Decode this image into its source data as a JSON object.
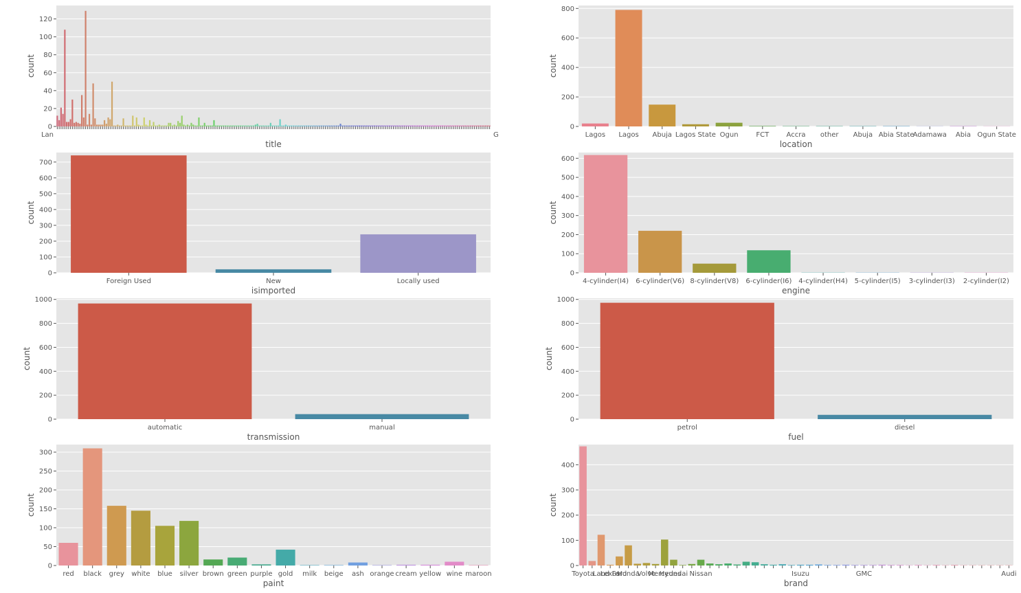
{
  "chart_data": [
    {
      "type": "bar",
      "xlabel": "title",
      "ylabel": "count",
      "ylim": [
        0,
        135
      ],
      "yticks": [
        0,
        20,
        40,
        60,
        80,
        100,
        120
      ],
      "grid": true,
      "tick_label_note": "about 230 overlapping category labels, unreadable",
      "edge_labels": {
        "left": "Lan",
        "right": "G"
      },
      "values": [
        12,
        7,
        21,
        14,
        108,
        5,
        5,
        8,
        30,
        4,
        5,
        4,
        3,
        35,
        10,
        129,
        2,
        14,
        2,
        48,
        9,
        2,
        2,
        2,
        2,
        7,
        3,
        10,
        8,
        50,
        1,
        1,
        2,
        1,
        1,
        9,
        1,
        1,
        1,
        1,
        12,
        1,
        10,
        2,
        1,
        1,
        10,
        2,
        1,
        7,
        1,
        5,
        1,
        1,
        2,
        1,
        1,
        1,
        1,
        4,
        4,
        1,
        2,
        1,
        6,
        4,
        12,
        2,
        1,
        2,
        1,
        4,
        2,
        1,
        1,
        10,
        1,
        1,
        4,
        1,
        1,
        1,
        1,
        7,
        1,
        1,
        1,
        1,
        1,
        1,
        1,
        1,
        1,
        1,
        1,
        1,
        1,
        1,
        1,
        1,
        1,
        1,
        1,
        1,
        1,
        2,
        3,
        1,
        1,
        1,
        1,
        1,
        1,
        4,
        1,
        1,
        1,
        1,
        8,
        1,
        1,
        2,
        1,
        1,
        1,
        1,
        1,
        1,
        1,
        1,
        1,
        1,
        1,
        1,
        1,
        1,
        1,
        1,
        1,
        1,
        1,
        1,
        1,
        1,
        1,
        1,
        1,
        1,
        1,
        1,
        3,
        1,
        1,
        1,
        1,
        1,
        1,
        1,
        1,
        1,
        1,
        1,
        1,
        1,
        1,
        1,
        1,
        1,
        1,
        1,
        1,
        1,
        1,
        1,
        1,
        1,
        1,
        1,
        1,
        1,
        1,
        1,
        1,
        1,
        1,
        1,
        1,
        1,
        1,
        1,
        1,
        1,
        1,
        1,
        1,
        1,
        1,
        1,
        1,
        1,
        1,
        1,
        1,
        1,
        1,
        1,
        1,
        1,
        1,
        1,
        1,
        1,
        1,
        1,
        1,
        1,
        1,
        1,
        1,
        1,
        1,
        1,
        1,
        1,
        1,
        1,
        1,
        1,
        1,
        1
      ]
    },
    {
      "type": "bar",
      "xlabel": "location",
      "ylabel": "count",
      "ylim": [
        0,
        820
      ],
      "yticks": [
        0,
        200,
        400,
        600,
        800
      ],
      "grid": true,
      "categories": [
        "Lagos",
        "Lagos",
        "Abuja",
        "Lagos State",
        "Ogun",
        "FCT",
        "Accra",
        "other",
        "Abuja",
        "Abia State",
        "Adamawa",
        "Abia",
        "Ogun State"
      ],
      "values": [
        20,
        790,
        148,
        15,
        25,
        3,
        2,
        2,
        2,
        2,
        1,
        2,
        1
      ],
      "colors": [
        "#e8808d",
        "#e08c58",
        "#c8983e",
        "#b09a3c",
        "#8ca23e",
        "#5ca44c",
        "#43a568",
        "#43a68a",
        "#43a1a6",
        "#4898c4",
        "#8a91d8",
        "#c47fd8",
        "#e080c6"
      ]
    },
    {
      "type": "bar",
      "xlabel": "isimported",
      "ylabel": "count",
      "ylim": [
        0,
        760
      ],
      "yticks": [
        0,
        100,
        200,
        300,
        400,
        500,
        600,
        700
      ],
      "grid": true,
      "categories": [
        "Foreign Used",
        "New",
        "Locally used"
      ],
      "values": [
        742,
        22,
        243
      ],
      "colors": [
        "#cc5a48",
        "#4889a4",
        "#9c96c8"
      ]
    },
    {
      "type": "bar",
      "xlabel": "engine",
      "ylabel": "count",
      "ylim": [
        0,
        630
      ],
      "yticks": [
        0,
        100,
        200,
        300,
        400,
        500,
        600
      ],
      "grid": true,
      "categories": [
        "4-cylinder(I4)",
        "6-cylinder(V6)",
        "8-cylinder(V8)",
        "6-cylinder(I6)",
        "4-cylinder(H4)",
        "5-cylinder(I5)",
        "3-cylinder(I3)",
        "2-cylinder(I2)"
      ],
      "values": [
        617,
        220,
        48,
        118,
        1,
        1,
        1,
        1
      ],
      "colors": [
        "#e8939c",
        "#c9954a",
        "#a59a3a",
        "#48ad70",
        "#44a7a6",
        "#5aa0d0",
        "#a890d6",
        "#e086c8"
      ]
    },
    {
      "type": "bar",
      "xlabel": "transmission",
      "ylabel": "count",
      "ylim": [
        0,
        1010
      ],
      "yticks": [
        0,
        200,
        400,
        600,
        800,
        1000
      ],
      "grid": true,
      "categories": [
        "automatic",
        "manual"
      ],
      "values": [
        966,
        42
      ],
      "colors": [
        "#cc5a48",
        "#4889a4"
      ]
    },
    {
      "type": "bar",
      "xlabel": "fuel",
      "ylabel": "count",
      "ylim": [
        0,
        1010
      ],
      "yticks": [
        0,
        200,
        400,
        600,
        800,
        1000
      ],
      "grid": true,
      "categories": [
        "petrol",
        "diesel"
      ],
      "values": [
        972,
        36
      ],
      "colors": [
        "#cc5a48",
        "#4889a4"
      ]
    },
    {
      "type": "bar",
      "xlabel": "paint",
      "ylabel": "count",
      "ylim": [
        0,
        320
      ],
      "yticks": [
        0,
        50,
        100,
        150,
        200,
        250,
        300
      ],
      "grid": true,
      "categories": [
        "red",
        "black",
        "grey",
        "white",
        "blue",
        "silver",
        "brown",
        "green",
        "purple",
        "gold",
        "milk",
        "beige",
        "ash",
        "orange",
        "cream",
        "yellow",
        "wine",
        "maroon"
      ],
      "values": [
        60,
        310,
        158,
        145,
        105,
        118,
        16,
        21,
        3,
        42,
        1,
        1,
        8,
        1,
        2,
        2,
        10,
        1
      ],
      "colors": [
        "#e8939c",
        "#e4967c",
        "#cf9a50",
        "#b49c40",
        "#a8a43c",
        "#8ca63e",
        "#54a854",
        "#48ab74",
        "#44aa8e",
        "#44aaa8",
        "#48a6c0",
        "#5aa2d6",
        "#72a0e0",
        "#9c98e0",
        "#bc90de",
        "#d48ad8",
        "#e28cc8",
        "#e68eb0"
      ]
    },
    {
      "type": "bar",
      "xlabel": "brand",
      "ylabel": "count",
      "ylim": [
        0,
        480
      ],
      "yticks": [
        0,
        100,
        200,
        300,
        400
      ],
      "grid": true,
      "tick_label_note": "about 50 overlapping brand labels",
      "categories": [
        "Toyota",
        "",
        "Land",
        "Lexus",
        "Ford",
        "Honda",
        "",
        "Volvo",
        "",
        "Mercedes",
        "Hyundai",
        "",
        "",
        "Nissan",
        "",
        "",
        "",
        "",
        "",
        "",
        "",
        "",
        "",
        "",
        "Isuzu",
        "",
        "",
        "",
        "",
        "",
        "",
        "GMC",
        "",
        "",
        "",
        "",
        "",
        "",
        "",
        "",
        "",
        "",
        "",
        "",
        "",
        "",
        "",
        "Audi"
      ],
      "values": [
        473,
        18,
        122,
        3,
        36,
        80,
        7,
        10,
        6,
        103,
        23,
        2,
        6,
        23,
        8,
        5,
        8,
        4,
        15,
        13,
        5,
        3,
        5,
        2,
        3,
        3,
        4,
        2,
        2,
        3,
        2,
        2,
        2,
        3,
        2,
        2,
        1,
        2,
        1,
        2,
        1,
        2,
        1,
        1,
        1,
        1,
        1,
        1
      ],
      "colors": [
        "#e8939c",
        "#e49686",
        "#e0986e",
        "#d89a58",
        "#cf9b4e",
        "#c69c46",
        "#bc9d42",
        "#b29e3e",
        "#a8a03c",
        "#9da23c",
        "#92a43e",
        "#86a640",
        "#78a844",
        "#68aa4a",
        "#58ab54",
        "#4aac60",
        "#46ad6c",
        "#45ad78",
        "#44ad84",
        "#44ad90",
        "#44ac9c",
        "#44aba8",
        "#45a9b4",
        "#47a7be",
        "#4aa5c8",
        "#50a2d2",
        "#5a9fdc",
        "#6a9ce2",
        "#7a99e4",
        "#8a96e4",
        "#9a93e2",
        "#aa90df",
        "#b88edc",
        "#c48cd8",
        "#d08ad4",
        "#da89cf",
        "#e289c8",
        "#e68ac0",
        "#e88bb8",
        "#e88cb0",
        "#e88da8",
        "#e88ea2",
        "#e88f9c",
        "#e8909a",
        "#e89198",
        "#e89296",
        "#e89296",
        "#e89396"
      ]
    }
  ]
}
